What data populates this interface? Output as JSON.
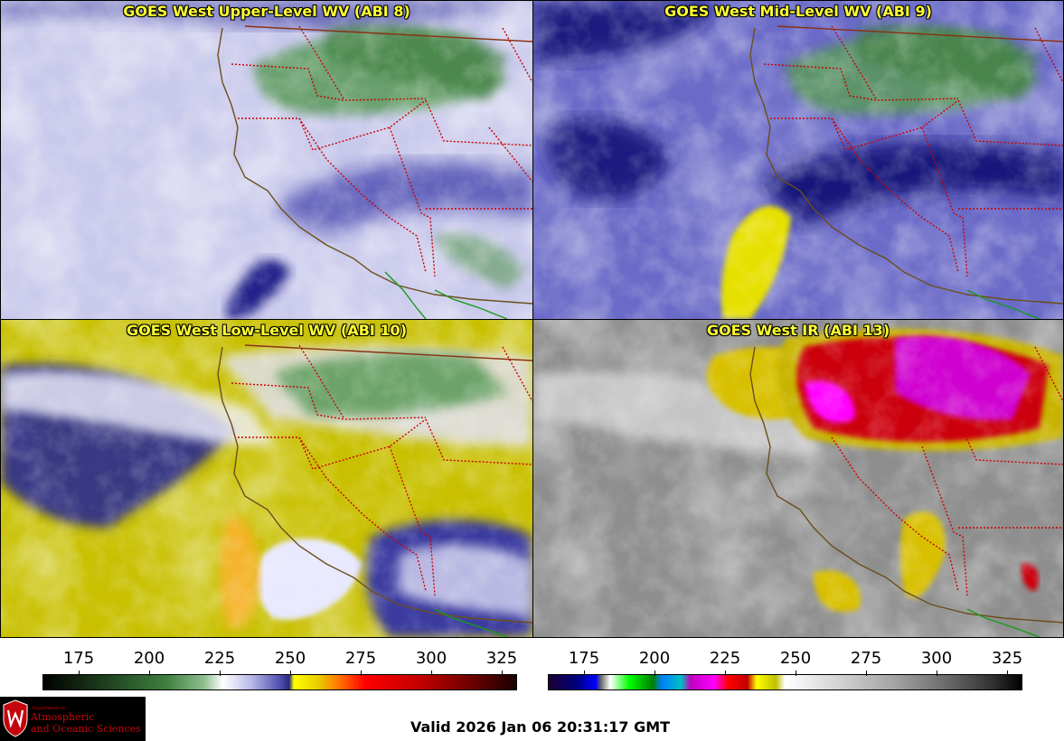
{
  "panels": {
    "upper": {
      "title": "GOES West Upper-Level WV (ABI 8)"
    },
    "mid": {
      "title": "GOES West Mid-Level WV (ABI 9)"
    },
    "low": {
      "title": "GOES West Low-Level WV (ABI 10)"
    },
    "ir": {
      "title": "GOES West IR (ABI 13)"
    }
  },
  "colorbars": {
    "wv": {
      "ticks": [
        "175",
        "200",
        "225",
        "250",
        "275",
        "300",
        "325"
      ]
    },
    "ir": {
      "ticks": [
        "175",
        "200",
        "225",
        "250",
        "275",
        "300",
        "325"
      ]
    }
  },
  "logo": {
    "dept": "Department of",
    "line1": "Atmospheric",
    "line2": "and Oceanic Sciences"
  },
  "footer": {
    "valid": "Valid 2026 Jan 06 20:31:17 GMT"
  },
  "colors": {
    "title": "#ffff33",
    "border": "#cc0000",
    "coast": "#6b4f1a",
    "mexico_border": "#1a9a1a",
    "logo_red": "#c5050c"
  }
}
